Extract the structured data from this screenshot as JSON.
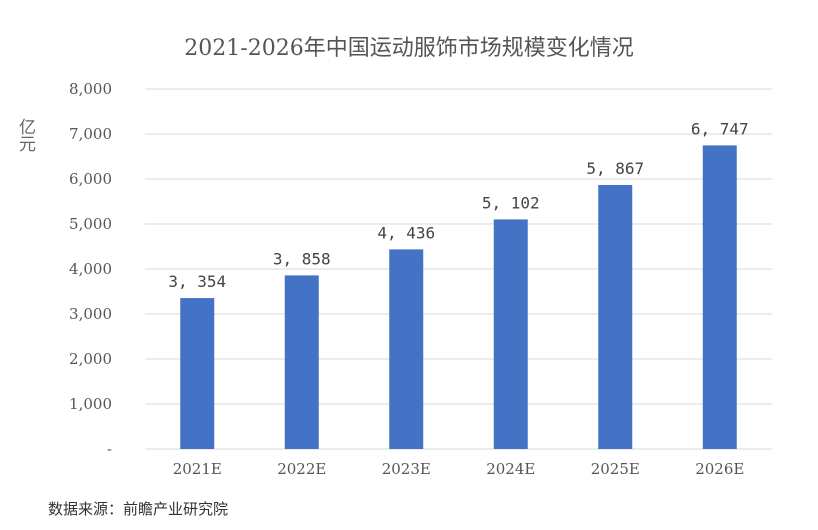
{
  "chart_data": {
    "type": "bar",
    "title": "2021-2026年中国运动服饰市场规模变化情况",
    "ylabel": "亿元",
    "xlabel": "",
    "categories": [
      "2021E",
      "2022E",
      "2023E",
      "2024E",
      "2025E",
      "2026E"
    ],
    "values": [
      3354,
      3858,
      4436,
      5102,
      5867,
      6747
    ],
    "value_labels": [
      "3, 354",
      "3, 858",
      "4, 436",
      "5, 102",
      "5, 867",
      "6, 747"
    ],
    "ylim": [
      0,
      8000
    ],
    "y_ticks": [
      0,
      1000,
      2000,
      3000,
      4000,
      5000,
      6000,
      7000,
      8000
    ],
    "y_tick_labels": [
      "-",
      "1,000",
      "2,000",
      "3,000",
      "4,000",
      "5,000",
      "6,000",
      "7,000",
      "8,000"
    ],
    "grid": true,
    "legend": "none",
    "bar_color": "#4472C4",
    "grid_color": "#d9d9d9"
  },
  "source_note": "数据来源：前瞻产业研究院"
}
